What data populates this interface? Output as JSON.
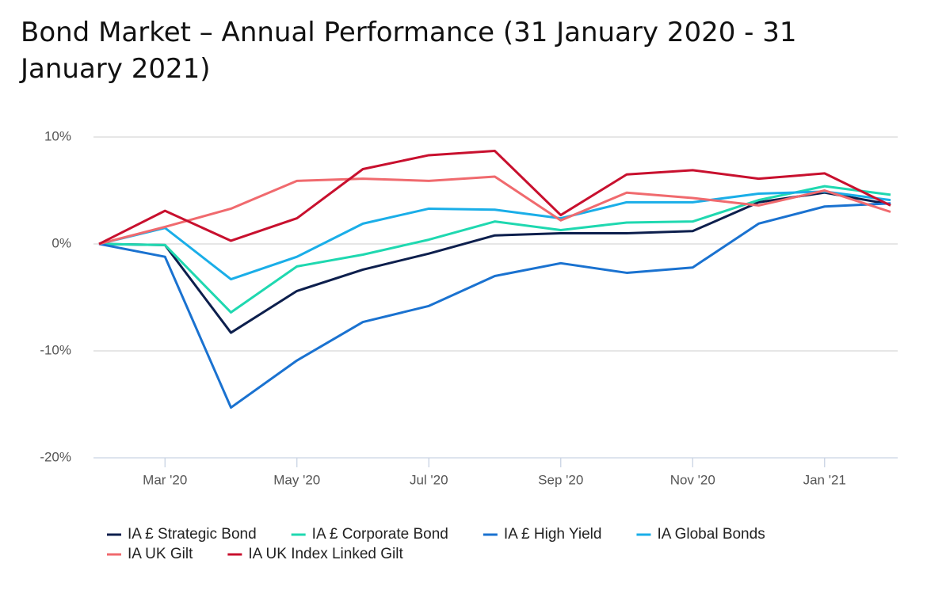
{
  "chart_data": {
    "type": "line",
    "title": "Bond Market – Annual Performance (31 January 2020 - 31 January 2021)",
    "categories": [
      null,
      "Mar '20",
      null,
      "May '20",
      null,
      "Jul '20",
      null,
      "Sep '20",
      null,
      "Nov '20",
      null,
      "Jan '21",
      null
    ],
    "ylim": [
      -20,
      10
    ],
    "yticks": [
      {
        "value": 10,
        "label": "10%"
      },
      {
        "value": 0,
        "label": "0%"
      },
      {
        "value": -10,
        "label": "-10%"
      },
      {
        "value": -20,
        "label": "-20%"
      }
    ],
    "grid": true,
    "legend": "bottom",
    "series": [
      {
        "name": "IA £ Strategic Bond",
        "color": "#0d1f4d",
        "values": [
          0,
          -0.1,
          -8.3,
          -4.4,
          -2.4,
          -0.9,
          0.8,
          1.0,
          1.0,
          1.2,
          3.9,
          4.8,
          3.7
        ]
      },
      {
        "name": "IA £ Corporate Bond",
        "color": "#1fd8b0",
        "values": [
          0,
          -0.1,
          -6.4,
          -2.1,
          -1.0,
          0.4,
          2.1,
          1.3,
          2.0,
          2.1,
          4.1,
          5.4,
          4.6
        ]
      },
      {
        "name": "IA £ High Yield",
        "color": "#1a72d0",
        "values": [
          0,
          -1.2,
          -15.3,
          -10.9,
          -7.3,
          -5.8,
          -3.0,
          -1.8,
          -2.7,
          -2.2,
          1.9,
          3.5,
          3.8
        ]
      },
      {
        "name": "IA Global Bonds",
        "color": "#1aaee8",
        "values": [
          0,
          1.5,
          -3.3,
          -1.2,
          1.9,
          3.3,
          3.2,
          2.4,
          3.9,
          3.9,
          4.7,
          4.9,
          4.1
        ]
      },
      {
        "name": "IA UK Gilt",
        "color": "#f06a6e",
        "values": [
          0,
          1.6,
          3.3,
          5.9,
          6.1,
          5.9,
          6.3,
          2.2,
          4.8,
          4.3,
          3.6,
          5.0,
          3.0
        ]
      },
      {
        "name": "IA UK Index Linked Gilt",
        "color": "#c8102e",
        "values": [
          0,
          3.1,
          0.3,
          2.4,
          7.0,
          8.3,
          8.7,
          2.7,
          6.5,
          6.9,
          6.1,
          6.6,
          3.6
        ]
      }
    ]
  }
}
